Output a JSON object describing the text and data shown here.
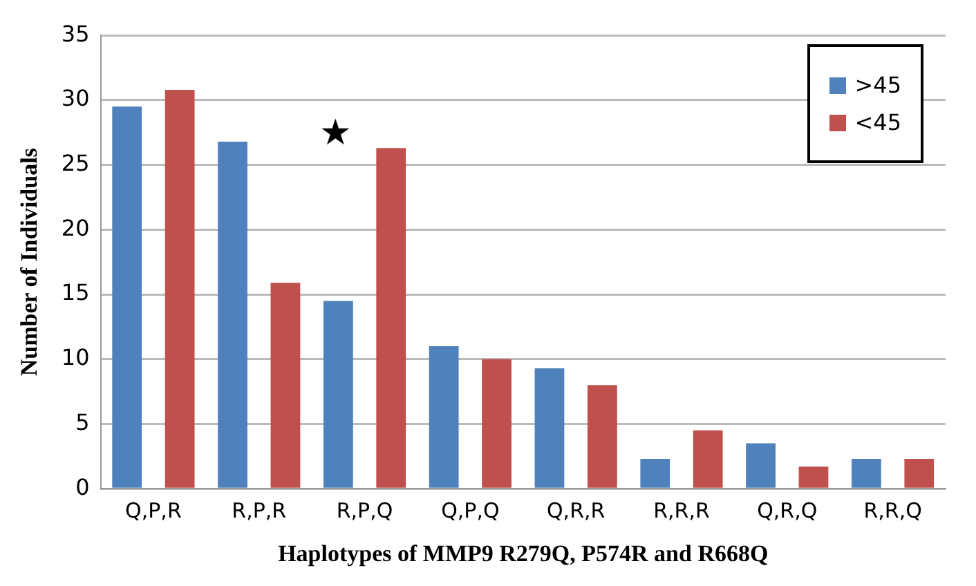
{
  "chart_data": {
    "type": "bar",
    "xlabel": "Haplotypes of MMP9 R279Q, P574R and R668Q",
    "ylabel": "Number of Individuals",
    "categories": [
      "Q,P,R",
      "R,P,R",
      "R,P,Q",
      "Q,P,Q",
      "Q,R,R",
      "R,R,R",
      "Q,R,Q",
      "R,R,Q"
    ],
    "series": [
      {
        "name": ">45",
        "color": "#4f81bd",
        "values": [
          29.5,
          26.8,
          14.5,
          11,
          9.3,
          2.3,
          3.5,
          2.3
        ]
      },
      {
        "name": "<45",
        "color": "#c0504d",
        "values": [
          30.8,
          15.9,
          26.3,
          10,
          8,
          4.5,
          1.7,
          2.3
        ]
      }
    ],
    "ylim": [
      0,
      35
    ],
    "yticks": [
      0,
      5,
      10,
      15,
      20,
      25,
      30,
      35
    ],
    "grid": "y",
    "legend": "top right",
    "annotations": [
      "★"
    ]
  }
}
